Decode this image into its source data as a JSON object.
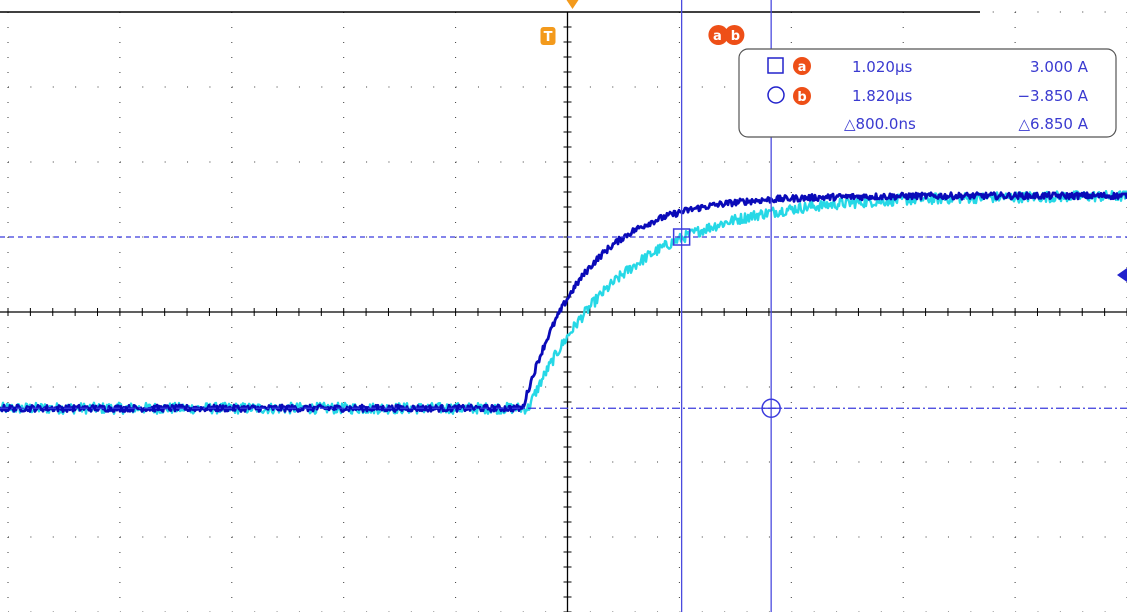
{
  "colors": {
    "background": "#ffffff",
    "grid": "#3a3a3a",
    "axis": "#000000",
    "trace_dark": "#0a0ab8",
    "trace_light": "#26d8e6",
    "cursor": "#4b4bdf",
    "cursor_level": "#3b3bdd",
    "trigger": "#f39a1c",
    "cursor_badge": "#ee4f17",
    "readout_text": "#3a3ad0",
    "readout_border": "#555555",
    "channel_marker": "#2222cc"
  },
  "icons": {
    "trigger_marker": "trigger-T-badge",
    "cursor_a": "square-marker",
    "cursor_b": "circle-marker",
    "channel_offset_marker": "left-pointing-triangle"
  },
  "trigger": {
    "label": "T"
  },
  "cursors": {
    "badge_a": "a",
    "badge_b": "b",
    "time_a": 1.02,
    "time_b": 1.82,
    "level_a": 3.0,
    "level_b": -3.85
  },
  "readout": {
    "row_a": {
      "badge": "a",
      "time": "1.020µs",
      "value": "3.000 A"
    },
    "row_b": {
      "badge": "b",
      "time": "1.820µs",
      "value": "−3.850 A"
    },
    "row_delta": {
      "time": "△800.0ns",
      "value": "△6.850 A"
    }
  },
  "chart_data": {
    "type": "line",
    "title": "",
    "xlabel": "",
    "ylabel": "",
    "grid": true,
    "x_unit": "µs",
    "y_unit": "A",
    "divisions": {
      "x": 10,
      "y": 8
    },
    "xlim": [
      -5.0,
      5.0
    ],
    "ylim": [
      -12.0,
      12.0
    ],
    "series": [
      {
        "name": "",
        "color": "dark blue",
        "baseline": -3.85,
        "final": 4.65,
        "step_time": -0.4,
        "tau": 0.55
      },
      {
        "name": "",
        "color": "cyan",
        "baseline": -3.85,
        "final": 4.65,
        "step_time": -0.35,
        "tau": 0.85
      }
    ]
  }
}
